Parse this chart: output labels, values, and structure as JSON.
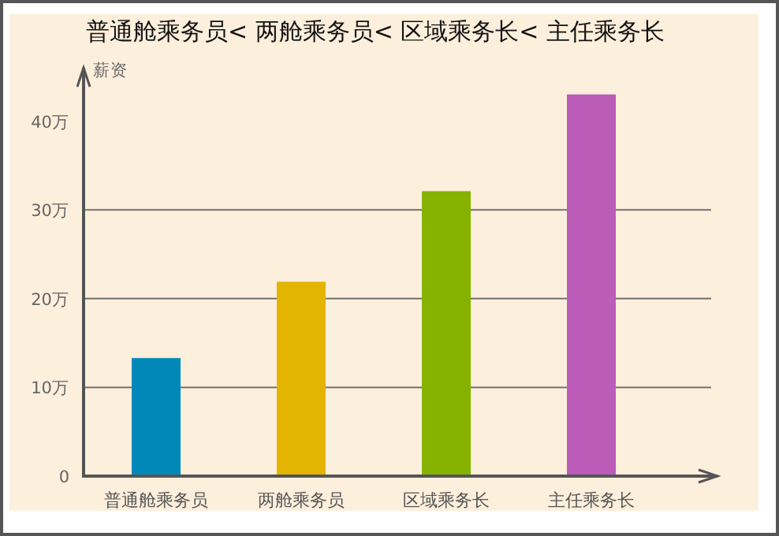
{
  "chart_data": {
    "type": "bar",
    "title": "普通舱乘务员< 两舱乘务员< 区域乘务长< 主任乘务长",
    "ylabel": "薪资",
    "categories": [
      "普通舱乘务员",
      "两舱乘务员",
      "区域乘务长",
      "主任乘务长"
    ],
    "values": [
      13.3,
      21.9,
      32.1,
      43.0
    ],
    "colors": [
      "#0089b8",
      "#e3b400",
      "#86b300",
      "#bc5cb9"
    ],
    "ylim": [
      0,
      46
    ],
    "yticks": [
      0,
      {
        "value": 10,
        "label": "10万"
      },
      {
        "value": 20,
        "label": "20万"
      },
      {
        "value": 30,
        "label": "30万"
      },
      {
        "value": 40,
        "label": "40万"
      }
    ],
    "ref_lines": [
      {
        "axis": "y",
        "value": 10,
        "color": "#707070"
      },
      {
        "axis": "y",
        "value": 20,
        "color": "#707070"
      },
      {
        "axis": "y",
        "value": 30,
        "color": "#707070"
      }
    ]
  }
}
